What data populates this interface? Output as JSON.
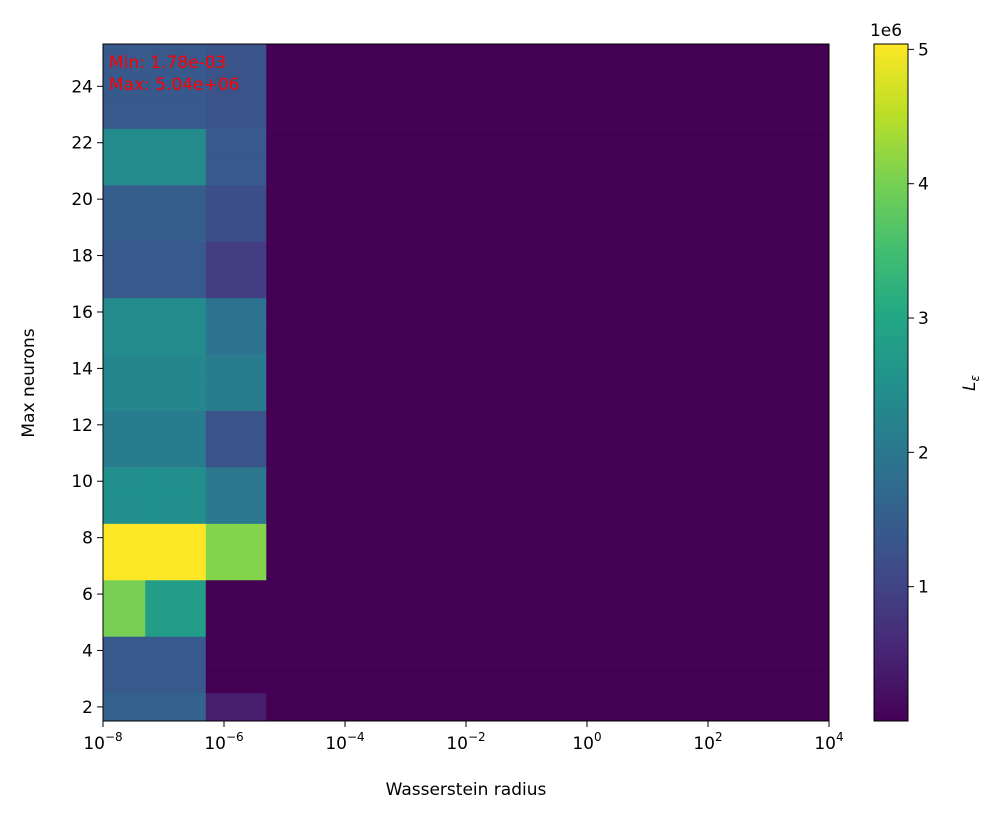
{
  "chart_data": {
    "type": "heatmap",
    "xlabel": "Wasserstein radius",
    "ylabel": "Max neurons",
    "x_edges": [
      1e-08,
      5e-08,
      5e-07,
      5e-06,
      10000
    ],
    "y": [
      2,
      3,
      4,
      5,
      6,
      7,
      8,
      9,
      10,
      11,
      12,
      13,
      14,
      15,
      16,
      17,
      18,
      19,
      20,
      21,
      22,
      23,
      24,
      25
    ],
    "z": [
      [
        1.6,
        1.6,
        0.4,
        0
      ],
      [
        1.4,
        1.4,
        0,
        0
      ],
      [
        1.4,
        1.4,
        0,
        0
      ],
      [
        4.0,
        2.8,
        0,
        0
      ],
      [
        4.0,
        2.8,
        0,
        0
      ],
      [
        5.04,
        5.04,
        4.1,
        0
      ],
      [
        5.04,
        5.04,
        4.1,
        0
      ],
      [
        2.5,
        2.5,
        2.0,
        0
      ],
      [
        2.5,
        2.5,
        2.0,
        0
      ],
      [
        2.1,
        2.1,
        1.3,
        0
      ],
      [
        2.1,
        2.1,
        1.3,
        0
      ],
      [
        2.3,
        2.3,
        2.1,
        0
      ],
      [
        2.3,
        2.3,
        2.1,
        0
      ],
      [
        2.4,
        2.4,
        1.9,
        0
      ],
      [
        2.4,
        2.4,
        1.9,
        0
      ],
      [
        1.4,
        1.4,
        0.9,
        0
      ],
      [
        1.4,
        1.4,
        0.9,
        0
      ],
      [
        1.5,
        1.5,
        1.2,
        0
      ],
      [
        1.5,
        1.5,
        1.2,
        0
      ],
      [
        2.4,
        2.4,
        1.4,
        0
      ],
      [
        2.4,
        2.4,
        1.4,
        0
      ],
      [
        1.4,
        1.4,
        1.3,
        0
      ],
      [
        1.4,
        1.4,
        1.3,
        0
      ],
      [
        1.4,
        1.4,
        1.3,
        0
      ]
    ],
    "xscale": "log",
    "xlim": [
      1e-08,
      10000
    ],
    "xticks": [
      {
        "value": 1e-08,
        "label": "10−8"
      },
      {
        "value": 1e-06,
        "label": "10−6"
      },
      {
        "value": 0.0001,
        "label": "10−4"
      },
      {
        "value": 0.01,
        "label": "10−2"
      },
      {
        "value": 1,
        "label": "100"
      },
      {
        "value": 100,
        "label": "102"
      },
      {
        "value": 10000,
        "label": "104"
      }
    ],
    "ylim": [
      1.5,
      25.5
    ],
    "yticks": [
      2,
      4,
      6,
      8,
      10,
      12,
      14,
      16,
      18,
      20,
      22,
      24
    ],
    "colormap": "viridis",
    "clim": [
      0,
      5.04
    ],
    "cticks": [
      1,
      2,
      3,
      4,
      5
    ],
    "colorbar_offset": "1e6",
    "colorbar_label": "Lε",
    "annotations": [
      "Min: 1.78e-03",
      "Max: 5.04e+06"
    ],
    "annotation_color": "#ff0000"
  }
}
